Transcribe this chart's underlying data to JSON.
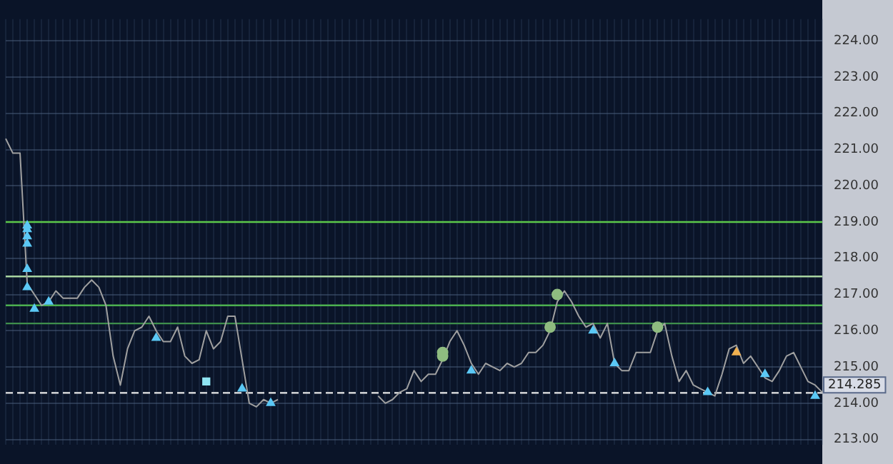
{
  "chart_data": {
    "type": "line",
    "categories": [
      null,
      null,
      null,
      null,
      null,
      null,
      null,
      null,
      null,
      null,
      null,
      null,
      null,
      null,
      null,
      null,
      null,
      null,
      null,
      null,
      null,
      null,
      null,
      null,
      null,
      null,
      null,
      null,
      null,
      null,
      null,
      null,
      null,
      null,
      null,
      null,
      null,
      null,
      null,
      null,
      null,
      null,
      null,
      null,
      null,
      null,
      null,
      null,
      null,
      null,
      null,
      null,
      null,
      null,
      null,
      null,
      null,
      null,
      null,
      null,
      null,
      null,
      null,
      null,
      null,
      null,
      null,
      null,
      null,
      null,
      null,
      null,
      null,
      null,
      null,
      null,
      null,
      null,
      null,
      null,
      null,
      null,
      null,
      null,
      null,
      null,
      null,
      null,
      null,
      null,
      null,
      null,
      null,
      null,
      null,
      null,
      null,
      null,
      null,
      null,
      null,
      null,
      null,
      null,
      null,
      null,
      null,
      null,
      null,
      null,
      null,
      null,
      null,
      null,
      null
    ],
    "series": [
      {
        "color": "#a0a0a0",
        "values": [
          221.3,
          220.9,
          220.9,
          217.3,
          217.0,
          216.7,
          216.8,
          217.1,
          216.9,
          216.9,
          216.9,
          217.2,
          217.4,
          217.2,
          216.7,
          215.3,
          214.5,
          215.5,
          216.0,
          216.1,
          216.4,
          216.0,
          215.7,
          215.7,
          216.1,
          215.3,
          215.1,
          215.2,
          216.0,
          215.5,
          215.7,
          216.4,
          216.4,
          215.2,
          214.0,
          213.9,
          214.1,
          214.0,
          214.1,
          null,
          null,
          null,
          null,
          null,
          null,
          null,
          null,
          null,
          null,
          null,
          null,
          null,
          null,
          null,
          null,
          null,
          null,
          null,
          null,
          null,
          null,
          null,
          null,
          null,
          null,
          null,
          null,
          null,
          null,
          null,
          null,
          null,
          null,
          null,
          null,
          null,
          null,
          null,
          null,
          null,
          null,
          null,
          null,
          null,
          null,
          null,
          null,
          null,
          null,
          null,
          null,
          null,
          null,
          null,
          null,
          null,
          null,
          null,
          null,
          null,
          null,
          null,
          null,
          null,
          null,
          null,
          null,
          null,
          null,
          null,
          null,
          null,
          null,
          null,
          null
        ]
      },
      {
        "color": "#a0a0a0",
        "values": [
          null,
          null,
          null,
          null,
          null,
          null,
          null,
          null,
          null,
          null,
          null,
          null,
          null,
          null,
          null,
          null,
          null,
          null,
          null,
          null,
          null,
          null,
          null,
          null,
          null,
          null,
          null,
          null,
          null,
          null,
          null,
          null,
          null,
          null,
          null,
          null,
          null,
          null,
          null,
          null,
          null,
          null,
          null,
          null,
          null,
          null,
          null,
          null,
          null,
          null,
          null,
          null,
          214.2,
          214.0,
          214.1,
          214.3,
          214.4,
          214.9,
          214.6,
          214.8,
          214.8,
          215.2,
          215.7,
          216.0,
          215.6,
          215.1,
          214.8,
          215.1,
          215.0,
          214.9,
          215.1,
          215.0,
          215.1,
          215.4,
          215.4,
          215.6,
          216.0,
          216.8,
          217.1,
          216.8,
          216.4,
          216.1,
          216.2,
          215.8,
          216.2,
          215.1,
          214.9,
          214.9,
          215.4,
          215.4,
          215.4,
          216.0,
          216.2,
          215.3,
          214.6,
          214.9,
          214.5,
          214.4,
          214.3,
          214.2,
          214.8,
          215.5,
          215.6,
          215.1,
          215.3,
          215.0,
          214.7,
          214.6,
          214.9,
          215.3,
          215.4,
          215.0,
          214.6,
          214.5,
          214.3
        ]
      },
      {
        "type": "scatter",
        "marker": "triangle",
        "color": "#5bc8f5",
        "values": [
          null,
          null,
          null,
          218.9,
          216.6,
          null,
          216.8,
          null,
          null,
          null,
          null,
          null,
          null,
          null,
          null,
          null,
          null,
          null,
          null,
          null,
          null,
          215.8,
          null,
          null,
          null,
          null,
          null,
          null,
          null,
          null,
          null,
          null,
          null,
          214.4,
          null,
          null,
          null,
          214.0,
          null,
          null,
          null,
          null,
          null,
          null,
          null,
          null,
          null,
          null,
          null,
          null,
          null,
          null,
          null,
          null,
          null,
          null,
          null,
          null,
          null,
          null,
          null,
          null,
          null,
          null,
          null,
          214.9,
          null,
          null,
          null,
          null,
          null,
          null,
          null,
          null,
          null,
          null,
          null,
          null,
          null,
          null,
          null,
          null,
          216.0,
          null,
          null,
          215.1,
          null,
          null,
          null,
          null,
          null,
          null,
          null,
          null,
          null,
          null,
          null,
          null,
          214.3,
          null,
          null,
          null,
          null,
          null,
          null,
          null,
          214.8,
          null,
          null,
          null,
          null,
          null,
          null,
          214.2,
          null
        ]
      },
      {
        "type": "scatter",
        "marker": "triangle",
        "color": "#5bc8f5",
        "values": [
          null,
          null,
          null,
          218.8,
          null,
          null,
          null,
          null,
          null,
          null,
          null,
          null,
          null,
          null,
          null,
          null,
          null,
          null,
          null,
          null,
          null,
          null,
          null,
          null,
          null,
          null,
          null,
          null,
          null,
          null,
          null,
          null,
          null,
          null,
          null,
          null,
          null,
          null,
          null,
          null,
          null,
          null,
          null,
          null,
          null,
          null,
          null,
          null,
          null,
          null,
          null,
          null,
          null,
          null,
          null,
          null,
          null,
          null,
          null,
          null,
          null,
          null,
          null,
          null,
          null,
          null,
          null,
          null,
          null,
          null,
          null,
          null,
          null,
          null,
          null,
          null,
          null,
          null,
          null,
          null,
          null,
          null,
          null,
          null,
          null,
          null,
          null,
          null,
          null,
          null,
          null,
          null,
          null,
          null,
          null,
          null,
          null,
          null,
          null,
          null,
          null,
          null,
          null,
          null,
          null,
          null,
          null,
          null,
          null,
          null,
          null,
          null,
          null,
          null,
          null
        ]
      },
      {
        "type": "scatter",
        "marker": "triangle",
        "color": "#5bc8f5",
        "values": [
          null,
          null,
          null,
          218.6,
          null,
          null,
          null,
          null,
          null,
          null,
          null,
          null,
          null,
          null,
          null,
          null,
          null,
          null,
          null,
          null,
          null,
          null,
          null,
          null,
          null,
          null,
          null,
          null,
          null,
          null,
          null,
          null,
          null,
          null,
          null,
          null,
          null,
          null,
          null,
          null,
          null,
          null,
          null,
          null,
          null,
          null,
          null,
          null,
          null,
          null,
          null,
          null,
          null,
          null,
          null,
          null,
          null,
          null,
          null,
          null,
          null,
          null,
          null,
          null,
          null,
          null,
          null,
          null,
          null,
          null,
          null,
          null,
          null,
          null,
          null,
          null,
          null,
          null,
          null,
          null,
          null,
          null,
          null,
          null,
          null,
          null,
          null,
          null,
          null,
          null,
          null,
          null,
          null,
          null,
          null,
          null,
          null,
          null,
          null,
          null,
          null,
          null,
          null,
          null,
          null,
          null,
          null,
          null,
          null,
          null,
          null,
          null,
          null,
          null,
          null
        ]
      },
      {
        "type": "scatter",
        "marker": "triangle",
        "color": "#5bc8f5",
        "values": [
          null,
          null,
          null,
          218.4,
          null,
          null,
          null,
          null,
          null,
          null,
          null,
          null,
          null,
          null,
          null,
          null,
          null,
          null,
          null,
          null,
          null,
          null,
          null,
          null,
          null,
          null,
          null,
          null,
          null,
          null,
          null,
          null,
          null,
          null,
          null,
          null,
          null,
          null,
          null,
          null,
          null,
          null,
          null,
          null,
          null,
          null,
          null,
          null,
          null,
          null,
          null,
          null,
          null,
          null,
          null,
          null,
          null,
          null,
          null,
          null,
          null,
          null,
          null,
          null,
          null,
          null,
          null,
          null,
          null,
          null,
          null,
          null,
          null,
          null,
          null,
          null,
          null,
          null,
          null,
          null,
          null,
          null,
          null,
          null,
          null,
          null,
          null,
          null,
          null,
          null,
          null,
          null,
          null,
          null,
          null,
          null,
          null,
          null,
          null,
          null,
          null,
          null,
          null,
          null,
          null,
          null,
          null,
          null,
          null,
          null,
          null,
          null,
          null,
          null,
          null
        ]
      },
      {
        "type": "scatter",
        "marker": "triangle",
        "color": "#5bc8f5",
        "values": [
          null,
          null,
          null,
          217.7,
          null,
          null,
          null,
          null,
          null,
          null,
          null,
          null,
          null,
          null,
          null,
          null,
          null,
          null,
          null,
          null,
          null,
          null,
          null,
          null,
          null,
          null,
          null,
          null,
          null,
          null,
          null,
          null,
          null,
          null,
          null,
          null,
          null,
          null,
          null,
          null,
          null,
          null,
          null,
          null,
          null,
          null,
          null,
          null,
          null,
          null,
          null,
          null,
          null,
          null,
          null,
          null,
          null,
          null,
          null,
          null,
          null,
          null,
          null,
          null,
          null,
          null,
          null,
          null,
          null,
          null,
          null,
          null,
          null,
          null,
          null,
          null,
          null,
          null,
          null,
          null,
          null,
          null,
          null,
          null,
          null,
          null,
          null,
          null,
          null,
          null,
          null,
          null,
          null,
          null,
          null,
          null,
          null,
          null,
          null,
          null,
          null,
          null,
          null,
          null,
          null,
          null,
          null,
          null,
          null,
          null,
          null,
          null,
          null,
          null,
          null
        ]
      },
      {
        "type": "scatter",
        "marker": "triangle",
        "color": "#5bc8f5",
        "values": [
          null,
          null,
          null,
          217.2,
          null,
          null,
          null,
          null,
          null,
          null,
          null,
          null,
          null,
          null,
          null,
          null,
          null,
          null,
          null,
          null,
          null,
          null,
          null,
          null,
          null,
          null,
          null,
          null,
          null,
          null,
          null,
          null,
          null,
          null,
          null,
          null,
          null,
          null,
          null,
          null,
          null,
          null,
          null,
          null,
          null,
          null,
          null,
          null,
          null,
          null,
          null,
          null,
          null,
          null,
          null,
          null,
          null,
          null,
          null,
          null,
          null,
          null,
          null,
          null,
          null,
          null,
          null,
          null,
          null,
          null,
          null,
          null,
          null,
          null,
          null,
          null,
          null,
          null,
          null,
          null,
          null,
          null,
          null,
          null,
          null,
          null,
          null,
          null,
          null,
          null,
          null,
          null,
          null,
          null,
          null,
          null,
          null,
          null,
          null,
          null,
          null,
          null,
          null,
          null,
          null,
          null,
          null,
          null,
          null,
          null,
          null,
          null,
          null,
          null,
          null
        ]
      },
      {
        "type": "scatter",
        "marker": "square",
        "color": "#8fe4f2",
        "values": [
          null,
          null,
          null,
          null,
          null,
          null,
          null,
          null,
          null,
          null,
          null,
          null,
          null,
          null,
          null,
          null,
          null,
          null,
          null,
          null,
          null,
          null,
          null,
          null,
          null,
          null,
          null,
          null,
          214.6,
          null,
          null,
          null,
          null,
          null,
          null,
          null,
          null,
          null,
          null,
          null,
          null,
          null,
          null,
          null,
          null,
          null,
          null,
          null,
          null,
          null,
          null,
          null,
          null,
          null,
          null,
          null,
          null,
          null,
          null,
          null,
          null,
          null,
          null,
          null,
          null,
          null,
          null,
          null,
          null,
          null,
          null,
          null,
          null,
          null,
          null,
          null,
          null,
          null,
          null,
          null,
          null,
          null,
          null,
          null,
          null,
          null,
          null,
          null,
          null,
          null,
          null,
          null,
          null,
          null,
          null,
          null,
          null,
          null,
          null,
          null,
          null,
          null,
          null,
          null,
          null,
          null,
          null,
          null,
          null,
          null,
          null,
          null,
          null,
          null,
          null
        ]
      },
      {
        "type": "scatter",
        "marker": "circle",
        "color": "#8fbc80",
        "values": [
          null,
          null,
          null,
          null,
          null,
          null,
          null,
          null,
          null,
          null,
          null,
          null,
          null,
          null,
          null,
          null,
          null,
          null,
          null,
          null,
          null,
          null,
          null,
          null,
          null,
          null,
          null,
          null,
          null,
          null,
          null,
          null,
          null,
          null,
          null,
          null,
          null,
          null,
          null,
          null,
          null,
          null,
          null,
          null,
          null,
          null,
          null,
          null,
          null,
          null,
          null,
          null,
          null,
          null,
          null,
          null,
          null,
          null,
          null,
          null,
          null,
          215.4,
          null,
          null,
          null,
          null,
          null,
          null,
          null,
          null,
          null,
          null,
          null,
          null,
          null,
          null,
          216.1,
          217.0,
          null,
          null,
          null,
          null,
          null,
          null,
          null,
          null,
          null,
          null,
          null,
          null,
          null,
          216.1,
          null,
          null,
          null,
          null,
          null,
          null,
          null,
          null,
          null,
          null,
          null,
          null,
          null,
          null,
          null,
          null,
          null,
          null,
          null,
          null,
          null,
          null,
          null
        ]
      },
      {
        "type": "scatter",
        "marker": "circle",
        "color": "#8fbc80",
        "values": [
          null,
          null,
          null,
          null,
          null,
          null,
          null,
          null,
          null,
          null,
          null,
          null,
          null,
          null,
          null,
          null,
          null,
          null,
          null,
          null,
          null,
          null,
          null,
          null,
          null,
          null,
          null,
          null,
          null,
          null,
          null,
          null,
          null,
          null,
          null,
          null,
          null,
          null,
          null,
          null,
          null,
          null,
          null,
          null,
          null,
          null,
          null,
          null,
          null,
          null,
          null,
          null,
          null,
          null,
          null,
          null,
          null,
          null,
          null,
          null,
          null,
          215.3,
          null,
          null,
          null,
          null,
          null,
          null,
          null,
          null,
          null,
          null,
          null,
          null,
          null,
          null,
          null,
          null,
          null,
          null,
          null,
          null,
          null,
          null,
          null,
          null,
          null,
          null,
          null,
          null,
          null,
          null,
          null,
          null,
          null,
          null,
          null,
          null,
          null,
          null,
          null,
          null,
          null,
          null,
          null,
          null,
          null,
          null,
          null,
          null,
          null,
          null,
          null,
          null,
          null
        ]
      },
      {
        "type": "scatter",
        "marker": "triangle",
        "color": "#f0b050",
        "values": [
          null,
          null,
          null,
          null,
          null,
          null,
          null,
          null,
          null,
          null,
          null,
          null,
          null,
          null,
          null,
          null,
          null,
          null,
          null,
          null,
          null,
          null,
          null,
          null,
          null,
          null,
          null,
          null,
          null,
          null,
          null,
          null,
          null,
          null,
          null,
          null,
          null,
          null,
          null,
          null,
          null,
          null,
          null,
          null,
          null,
          null,
          null,
          null,
          null,
          null,
          null,
          null,
          null,
          null,
          null,
          null,
          null,
          null,
          null,
          null,
          null,
          null,
          null,
          null,
          null,
          null,
          null,
          null,
          null,
          null,
          null,
          null,
          null,
          null,
          null,
          null,
          null,
          null,
          null,
          null,
          null,
          null,
          null,
          null,
          null,
          null,
          null,
          null,
          null,
          null,
          null,
          null,
          null,
          null,
          null,
          null,
          null,
          null,
          null,
          null,
          null,
          null,
          215.4,
          null,
          null,
          null,
          null,
          null,
          null,
          null,
          null,
          null,
          null,
          null,
          null
        ]
      }
    ],
    "ylim": [
      212.85,
      224.6
    ],
    "yticks": [
      {
        "value": 213,
        "label": "213.00"
      },
      {
        "value": 214,
        "label": "214.00"
      },
      {
        "value": 215,
        "label": "215.00"
      },
      {
        "value": 216,
        "label": "216.00"
      },
      {
        "value": 217,
        "label": "217.00"
      },
      {
        "value": 218,
        "label": "218.00"
      },
      {
        "value": 219,
        "label": "219.00"
      },
      {
        "value": 220,
        "label": "220.00"
      },
      {
        "value": 221,
        "label": "221.00"
      },
      {
        "value": 222,
        "label": "222.00"
      },
      {
        "value": 223,
        "label": "223.00"
      },
      {
        "value": 224,
        "label": "224.00"
      }
    ],
    "ref_lines": [
      {
        "axis": "y",
        "value": 219,
        "color": "#5cc84a"
      },
      {
        "axis": "y",
        "value": 217.5,
        "color": "#a8d4a0"
      },
      {
        "axis": "y",
        "value": 216.7,
        "color": "#4caf50"
      },
      {
        "axis": "y",
        "value": 216.2,
        "color": "#3f8f4c"
      },
      {
        "axis": "y",
        "value": 214.285,
        "label": "214.285",
        "color": "#e8e8e8",
        "line_style": "dashed"
      }
    ],
    "grid": true,
    "legend": false,
    "tick_labels": "y",
    "marker": "none",
    "line_style": "solid"
  }
}
